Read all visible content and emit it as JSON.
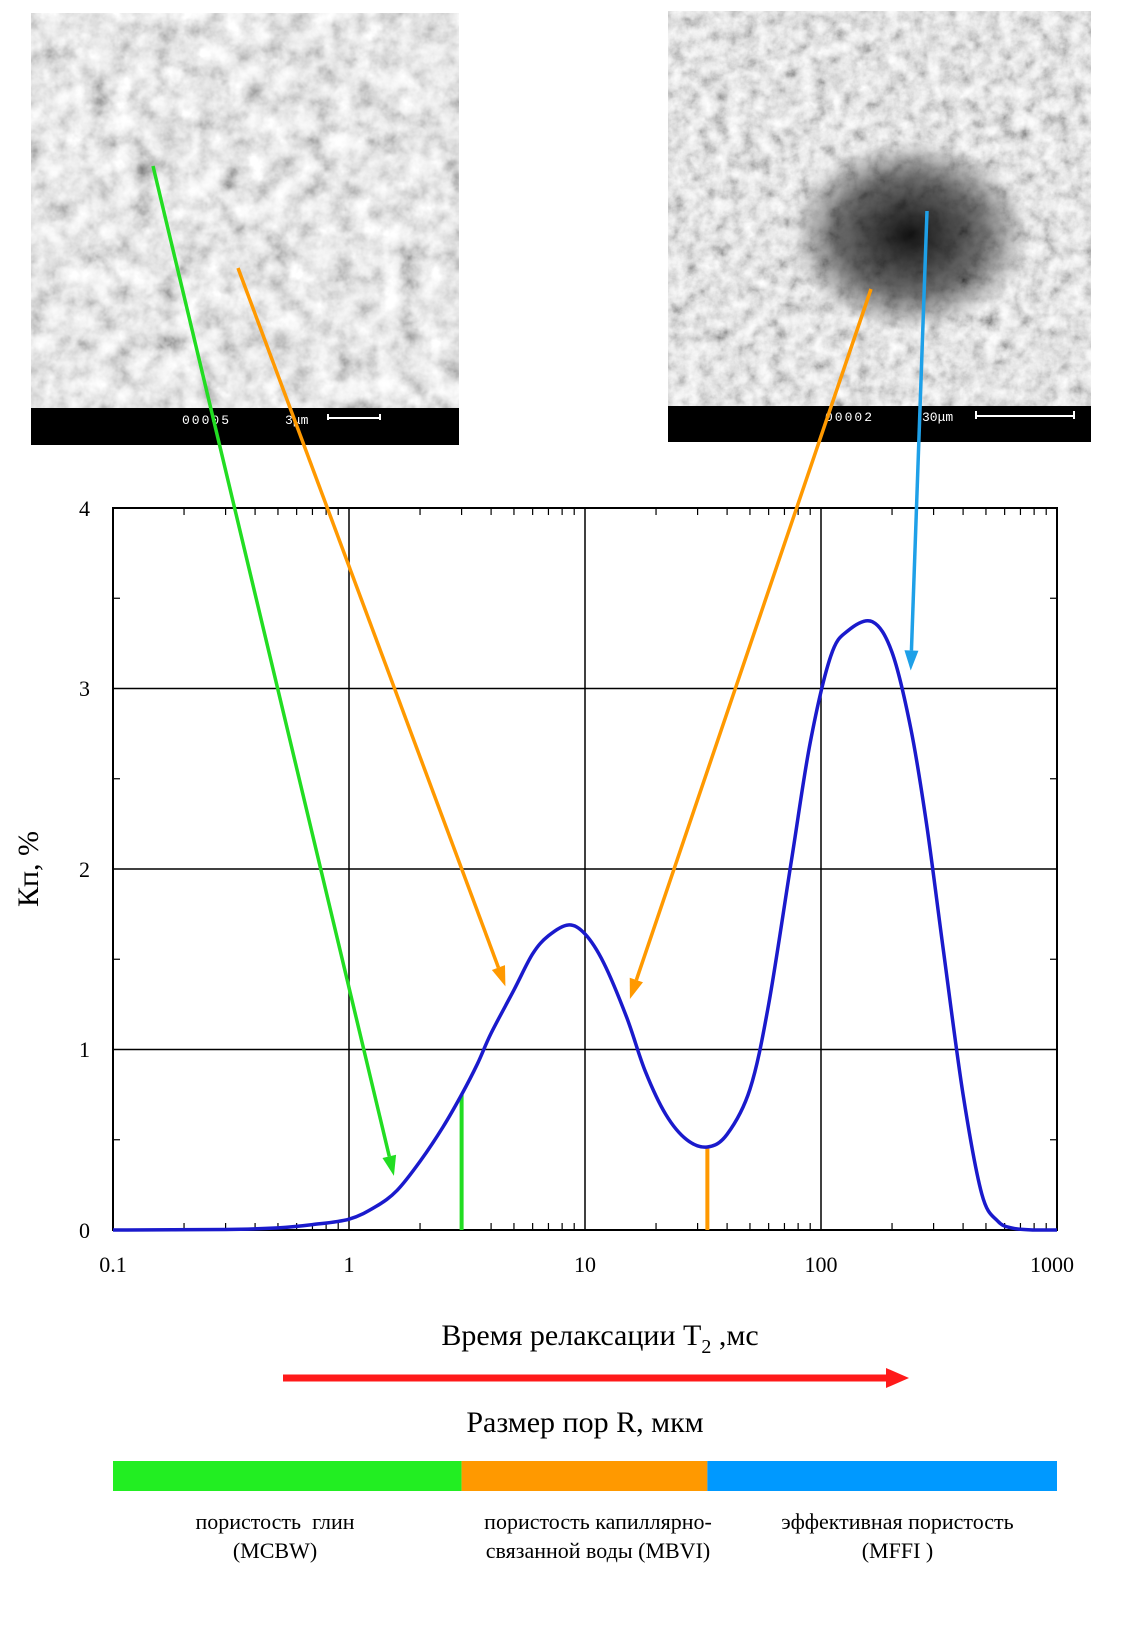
{
  "micrographs": {
    "left": {
      "code": "00005",
      "scale": "3μm"
    },
    "right": {
      "code": "00002",
      "scale": "30μm"
    }
  },
  "chart_data": {
    "type": "line",
    "x_scale": "log",
    "xlim": [
      0.1,
      1000
    ],
    "ylim": [
      0,
      4
    ],
    "grid": true,
    "xlabel": "Время релаксации T",
    "xlabel_subscript": "2",
    "xlabel_unit": " ,мс",
    "ylabel": "Кп, %",
    "x_ticks": [
      "0.1",
      "1",
      "10",
      "100",
      "1000"
    ],
    "y_ticks": [
      "0",
      "1",
      "2",
      "3",
      "4"
    ],
    "series": [
      {
        "color": "#1a1acc",
        "x": [
          0.1,
          0.3,
          0.5,
          0.7,
          1,
          1.3,
          1.6,
          2,
          2.5,
          3,
          3.5,
          4,
          5,
          6,
          7,
          8.5,
          10,
          12,
          15,
          18,
          22,
          27,
          33,
          40,
          50,
          60,
          75,
          90,
          110,
          130,
          165,
          200,
          240,
          280,
          330,
          400,
          480,
          560,
          650,
          800,
          1000
        ],
        "y": [
          0,
          0.003,
          0.012,
          0.03,
          0.06,
          0.13,
          0.22,
          0.38,
          0.57,
          0.75,
          0.92,
          1.09,
          1.33,
          1.53,
          1.63,
          1.69,
          1.64,
          1.48,
          1.18,
          0.88,
          0.64,
          0.5,
          0.46,
          0.53,
          0.78,
          1.25,
          2.05,
          2.7,
          3.18,
          3.32,
          3.37,
          3.2,
          2.78,
          2.25,
          1.55,
          0.75,
          0.2,
          0.05,
          0.01,
          0,
          0
        ]
      }
    ],
    "cutoffs": [
      {
        "x": 3,
        "y": 0.75,
        "color": "#22dd22"
      },
      {
        "x": 33,
        "y": 0.46,
        "color": "#ff9900"
      }
    ],
    "annotations": [
      {
        "color": "#22dd22",
        "from": "left-micrograph",
        "to_x": 1.55,
        "to_y": 0.3
      },
      {
        "color": "#ff9900",
        "from": "left-micrograph",
        "to_x": 4.6,
        "to_y": 1.35
      },
      {
        "color": "#ff9900",
        "from": "right-micrograph",
        "to_x": 15.5,
        "to_y": 1.28
      },
      {
        "color": "#1ea0e8",
        "from": "right-micrograph",
        "to_x": 240,
        "to_y": 3.1
      }
    ],
    "pore_size_label": "Размер пор R, мкм",
    "bands": [
      {
        "from": 0.1,
        "to": 3,
        "color": "#22ee22",
        "label_line1": "пористость  глин",
        "label_line2": "(MCBW)"
      },
      {
        "from": 3,
        "to": 33,
        "color": "#ff9900",
        "label_line1": "пористость капиллярно-",
        "label_line2": "связанной воды (MBVI)"
      },
      {
        "from": 33,
        "to": 1000,
        "color": "#0099ff",
        "label_line1": "эффективная пористость",
        "label_line2": "(MFFI )"
      }
    ]
  }
}
